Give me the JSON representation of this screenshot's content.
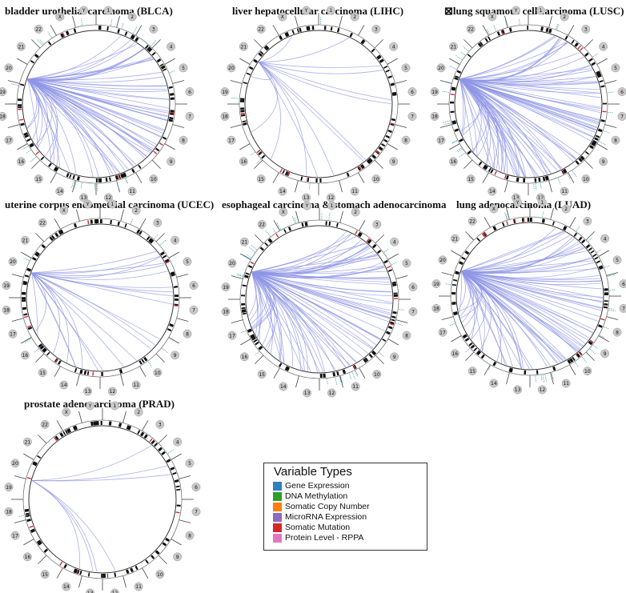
{
  "panels": [
    {
      "title": "bladder urothelial carcinoma (BLCA)",
      "links": 70
    },
    {
      "title": "liver hepatocellular carcinoma (LIHC)",
      "links": 14
    },
    {
      "title": "⊠lung squamous cell carcinoma (LUSC)",
      "links": 90
    },
    {
      "title": "uterine corpus endometrial carcinoma (UCEC)",
      "links": 24
    },
    {
      "title": "esophageal carcinoma & stomach adenocarcinoma",
      "links": 85
    },
    {
      "title": "lung adenocarcinoma (LUAD)",
      "links": 80
    },
    {
      "title": "prostate adenocarcinoma (PRAD)",
      "links": 7
    }
  ],
  "chromosomes": [
    "1",
    "2",
    "3",
    "4",
    "5",
    "6",
    "7",
    "8",
    "9",
    "10",
    "11",
    "12",
    "13",
    "14",
    "15",
    "16",
    "17",
    "18",
    "19",
    "20",
    "21",
    "22",
    "X",
    "Y"
  ],
  "colors": {
    "link": "#8f95e6",
    "chromosome_block": "#111111",
    "label_bubble": "#c8c8c8"
  },
  "legend": {
    "title": "Variable Types",
    "items": [
      {
        "label": "Gene Expression",
        "color": "#2f7fc1"
      },
      {
        "label": "DNA Methylation",
        "color": "#2ca02c"
      },
      {
        "label": "Somatic Copy Number",
        "color": "#ff7f0e"
      },
      {
        "label": "MicroRNA Expression",
        "color": "#8e6bbf"
      },
      {
        "label": "Somatic Mutation",
        "color": "#d62728"
      },
      {
        "label": "Protein Level - RPPA",
        "color": "#e377c2"
      }
    ]
  }
}
